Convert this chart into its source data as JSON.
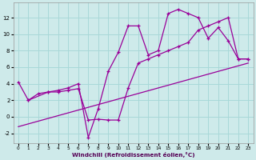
{
  "xlabel": "Windchill (Refroidissement éolien,°C)",
  "bg_color": "#ceeaea",
  "grid_color": "#a8d8d8",
  "line_color": "#990099",
  "xlim": [
    -0.5,
    23.5
  ],
  "ylim": [
    -3.2,
    13.8
  ],
  "xticks": [
    0,
    1,
    2,
    3,
    4,
    5,
    6,
    7,
    8,
    9,
    10,
    11,
    12,
    13,
    14,
    15,
    16,
    17,
    18,
    19,
    20,
    21,
    22,
    23
  ],
  "yticks": [
    -2,
    0,
    2,
    4,
    6,
    8,
    10,
    12
  ],
  "line1_x": [
    0,
    1,
    2,
    3,
    4,
    5,
    6,
    7,
    8,
    9,
    10,
    11,
    12,
    13,
    14,
    15,
    16,
    17,
    18,
    19,
    20,
    21,
    22,
    23
  ],
  "line1_y": [
    4.2,
    2.0,
    2.8,
    3.0,
    3.0,
    3.2,
    3.4,
    -0.4,
    -0.3,
    -0.4,
    -0.4,
    3.5,
    6.5,
    7.0,
    7.5,
    8.0,
    8.5,
    9.0,
    10.5,
    11.0,
    11.5,
    12.0,
    7.0,
    7.0
  ],
  "line2_x": [
    1,
    3,
    4,
    5,
    6,
    7,
    8,
    9,
    10,
    11,
    12,
    13,
    14,
    15,
    16,
    17,
    18,
    19,
    20,
    21,
    22,
    23
  ],
  "line2_y": [
    2.0,
    3.0,
    3.2,
    3.5,
    4.0,
    -2.5,
    1.0,
    5.5,
    7.8,
    11.0,
    11.0,
    7.5,
    8.0,
    12.5,
    13.0,
    12.5,
    12.0,
    9.5,
    10.8,
    9.2,
    7.0,
    7.0
  ],
  "line3_x": [
    0,
    23
  ],
  "line3_y": [
    -1.2,
    6.5
  ]
}
